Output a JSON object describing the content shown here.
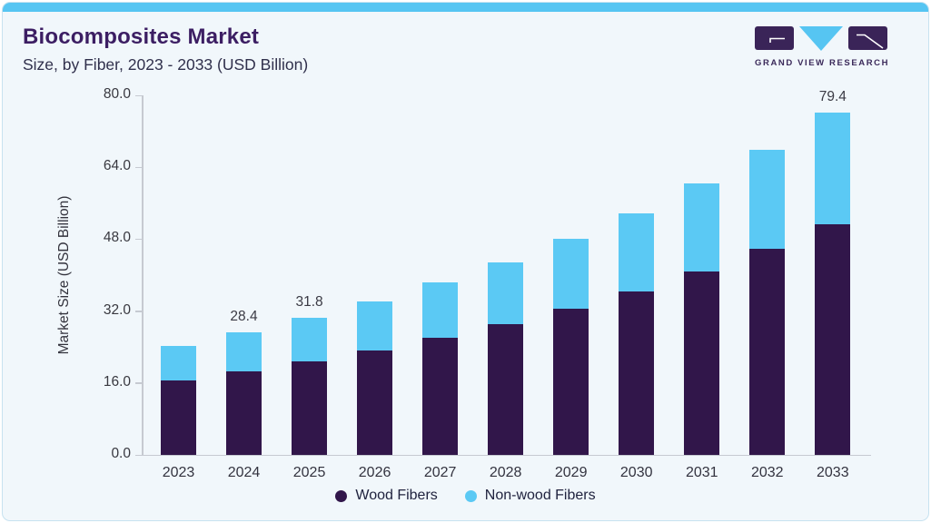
{
  "page": {
    "title": "Biocomposites Market",
    "subtitle": "Size, by Fiber, 2023 - 2033 (USD Billion)"
  },
  "logo": {
    "wordmark": "GRAND VIEW RESEARCH",
    "icon": "gvr-logo-mark"
  },
  "colors": {
    "accent_bar": "#56c5f2",
    "card_background": "#f1f7fb",
    "card_border": "#c7e2f0",
    "title_text": "#3c1e63",
    "wood_fibers": "#31164a",
    "non_wood_fibers": "#5bc9f4",
    "axis_line": "#c6cad1"
  },
  "chart_data": {
    "type": "bar",
    "stacked": true,
    "title": "Biocomposites Market Size, by Fiber, 2023 - 2033 (USD Billion)",
    "xlabel": "",
    "ylabel": "Market Size (USD Billion)",
    "ylim": [
      0,
      80
    ],
    "ytick_labels": [
      "0.0",
      "16.0",
      "32.0",
      "48.0",
      "64.0",
      "80.0"
    ],
    "yticks": [
      0,
      16,
      32,
      48,
      64,
      80
    ],
    "grid": false,
    "legend_position": "bottom",
    "categories": [
      "2023",
      "2024",
      "2025",
      "2026",
      "2027",
      "2028",
      "2029",
      "2030",
      "2031",
      "2032",
      "2033"
    ],
    "series": [
      {
        "name": "Wood Fibers",
        "color": "#31164a",
        "values": [
          17.2,
          19.3,
          21.6,
          24.2,
          27.1,
          30.3,
          33.9,
          38.0,
          42.6,
          47.8,
          53.5
        ]
      },
      {
        "name": "Non-wood Fibers",
        "color": "#5bc9f4",
        "values": [
          8.1,
          9.1,
          10.2,
          11.4,
          12.8,
          14.4,
          16.2,
          18.1,
          20.3,
          23.0,
          25.9
        ]
      }
    ],
    "totals": [
      25.3,
      28.4,
      31.8,
      35.6,
      39.9,
      44.7,
      50.1,
      56.1,
      62.9,
      70.8,
      79.4
    ],
    "visible_total_labels": {
      "2024": "28.4",
      "2025": "31.8",
      "2033": "79.4"
    }
  }
}
